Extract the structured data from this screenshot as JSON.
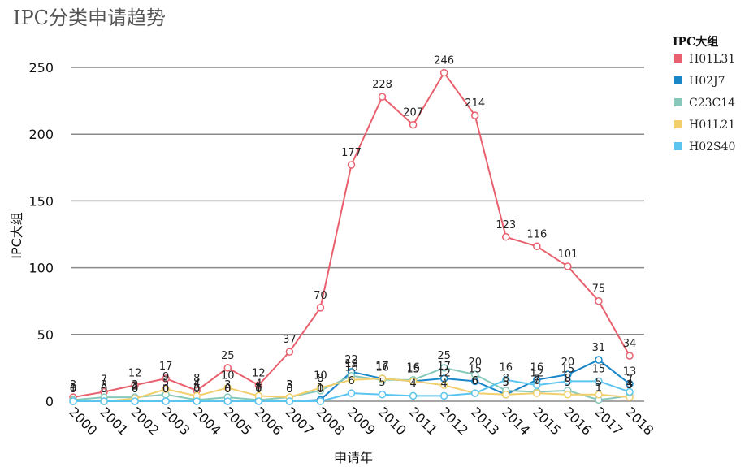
{
  "chart_data": {
    "type": "line",
    "title": "IPC分类申请趋势",
    "xlabel": "申请年",
    "ylabel": "IPC大组",
    "x": [
      "2000",
      "2001",
      "2002",
      "2003",
      "2004",
      "2005",
      "2006",
      "2007",
      "2008",
      "2009",
      "2010",
      "2011",
      "2012",
      "2013",
      "2014",
      "2015",
      "2016",
      "2017",
      "2018"
    ],
    "yticks": [
      0,
      50,
      100,
      150,
      200,
      250
    ],
    "ylim": [
      0,
      270
    ],
    "grid": true,
    "legend": {
      "title": "IPC大组",
      "placement": "right"
    },
    "series": [
      {
        "name": "H01L31",
        "color": "#e8606e",
        "values": [
          3,
          7,
          12,
          17,
          8,
          25,
          12,
          37,
          70,
          177,
          228,
          207,
          246,
          214,
          123,
          116,
          101,
          75,
          34
        ]
      },
      {
        "name": "H02J7",
        "color": "#1a86c8",
        "values": [
          0,
          0,
          0,
          0,
          0,
          0,
          0,
          0,
          1,
          22,
          17,
          15,
          17,
          15,
          5,
          16,
          20,
          31,
          13
        ]
      },
      {
        "name": "C23C14",
        "color": "#86c9bb",
        "values": [
          1,
          3,
          3,
          5,
          1,
          3,
          1,
          3,
          8,
          19,
          16,
          16,
          25,
          20,
          8,
          7,
          8,
          1,
          4
        ]
      },
      {
        "name": "H01L21",
        "color": "#f2cf6c",
        "values": [
          0,
          0,
          2,
          9,
          4,
          10,
          4,
          3,
          10,
          16,
          17,
          15,
          12,
          6,
          5,
          6,
          5,
          5,
          3
        ]
      },
      {
        "name": "H02S40",
        "color": "#5bc5ef",
        "values": [
          0,
          0,
          0,
          0,
          0,
          0,
          0,
          0,
          0,
          6,
          5,
          4,
          4,
          6,
          16,
          12,
          15,
          15,
          7
        ]
      }
    ]
  }
}
